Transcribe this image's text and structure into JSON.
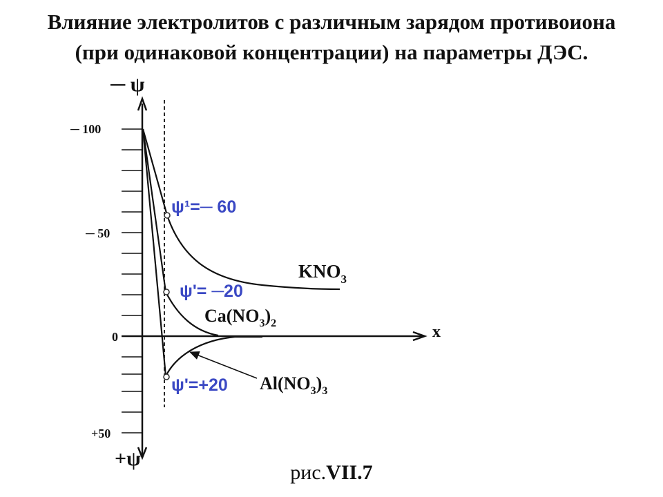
{
  "title": {
    "line1": "Влияние электролитов с различным зарядом противоиона",
    "line2": "(при одинаковой концентрации) на параметры ДЭС."
  },
  "axes": {
    "y_top_label": "─ ψ",
    "y_bottom_label": "+ψ",
    "x_label": "x",
    "tick_labels": {
      "t100": "─ 100",
      "t50": "─ 50",
      "t0": "0",
      "tp50": "+50"
    }
  },
  "curves": {
    "kno3": {
      "name": "KNO",
      "sub": "3"
    },
    "cano3": {
      "pre": "Ca(NO",
      "sub": "3",
      "post": ")",
      "sub2": "2"
    },
    "alno3": {
      "pre": "Al(NO",
      "sub": "3",
      "post": ")",
      "sub2": "3"
    }
  },
  "annotations": {
    "psi_kno3": "ψ¹=─ 60",
    "psi_cano3": "ψ'= ─20",
    "psi_alno3": "ψ'=+20"
  },
  "colors": {
    "annotation": "#3b49c4",
    "line": "#111111"
  },
  "caption": {
    "prefix": "рис.",
    "bold": "VII.7"
  }
}
